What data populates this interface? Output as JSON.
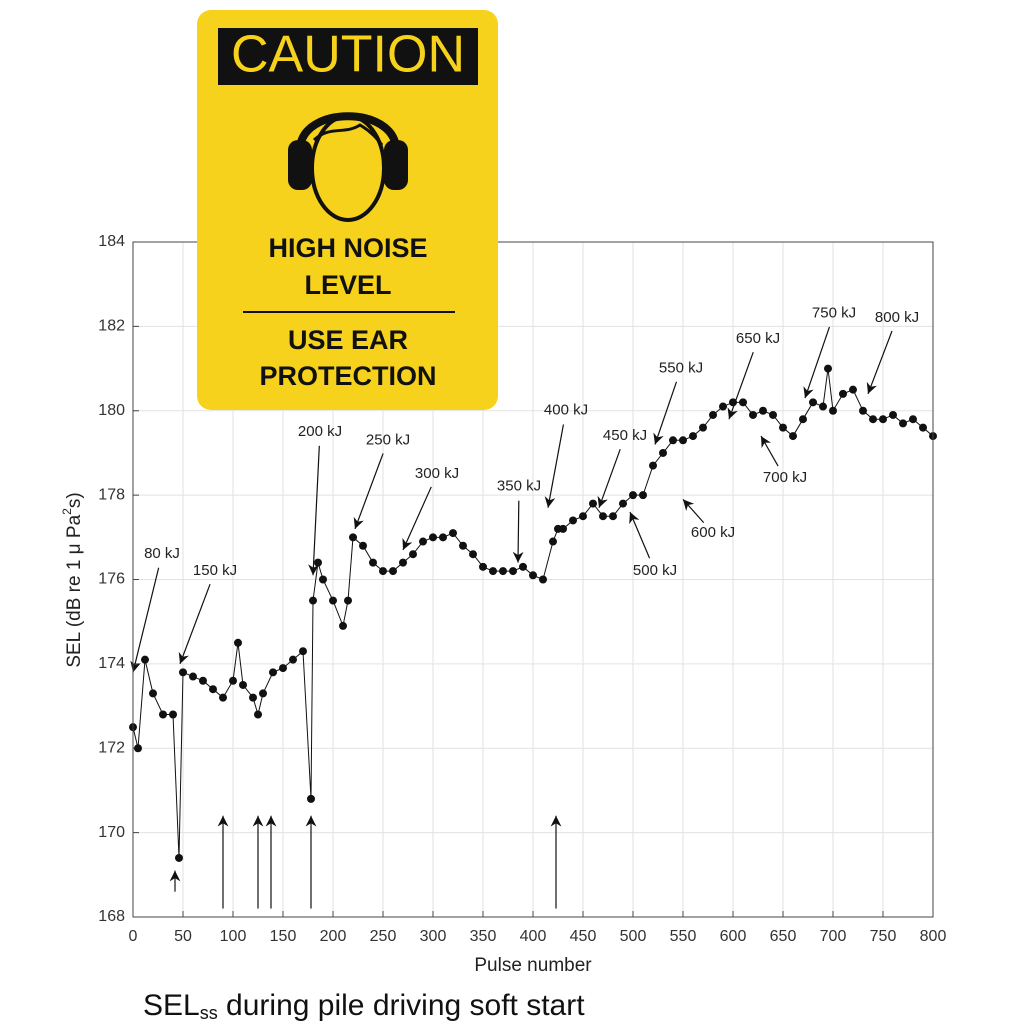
{
  "chart_data": {
    "type": "scatter",
    "ylabel": {
      "main": "SEL (dB re 1 μ Pa",
      "sup": "2",
      "rest": "s)"
    },
    "xlabel": "Pulse number",
    "x": [
      0,
      5,
      12,
      20,
      30,
      40,
      46,
      50,
      60,
      70,
      80,
      90,
      100,
      105,
      110,
      120,
      125,
      130,
      140,
      150,
      160,
      170,
      178,
      180,
      185,
      190,
      200,
      210,
      215,
      220,
      230,
      240,
      250,
      260,
      270,
      280,
      290,
      300,
      310,
      320,
      330,
      340,
      350,
      360,
      370,
      380,
      390,
      400,
      410,
      420,
      425,
      430,
      440,
      450,
      460,
      470,
      480,
      490,
      500,
      510,
      520,
      530,
      540,
      550,
      560,
      570,
      580,
      590,
      600,
      610,
      620,
      630,
      640,
      650,
      660,
      670,
      680,
      690,
      695,
      700,
      710,
      720,
      730,
      740,
      750,
      760,
      770,
      780,
      790,
      800
    ],
    "values": [
      172.5,
      172.0,
      174.1,
      173.3,
      172.8,
      172.8,
      169.4,
      173.8,
      173.7,
      173.6,
      173.4,
      173.2,
      173.6,
      174.5,
      173.5,
      173.2,
      172.8,
      173.3,
      173.8,
      173.9,
      174.1,
      174.3,
      170.8,
      175.5,
      176.4,
      176.0,
      175.5,
      174.9,
      175.5,
      177.0,
      176.8,
      176.4,
      176.2,
      176.2,
      176.4,
      176.6,
      176.9,
      177.0,
      177.0,
      177.1,
      176.8,
      176.6,
      176.3,
      176.2,
      176.2,
      176.2,
      176.3,
      176.1,
      176.0,
      176.9,
      177.2,
      177.2,
      177.4,
      177.5,
      177.8,
      177.5,
      177.5,
      177.8,
      178.0,
      178.0,
      178.7,
      179.0,
      179.3,
      179.3,
      179.4,
      179.6,
      179.9,
      180.1,
      180.2,
      180.2,
      179.9,
      180.0,
      179.9,
      179.6,
      179.4,
      179.8,
      180.2,
      180.1,
      181.0,
      180.0,
      180.4,
      180.5,
      180.0,
      179.8,
      179.8,
      179.9,
      179.7,
      179.8,
      179.6,
      179.4
    ],
    "color": "#111111",
    "xlim": [
      0,
      800
    ],
    "ylim": [
      168,
      184
    ],
    "xticks": [
      0,
      50,
      100,
      150,
      200,
      250,
      300,
      350,
      400,
      450,
      500,
      550,
      600,
      650,
      700,
      750,
      800
    ],
    "yticks": [
      168,
      170,
      172,
      174,
      176,
      178,
      180,
      182,
      184
    ],
    "grid": true,
    "annotations": [
      {
        "text": "80 kJ",
        "x": 0,
        "y": 173.8,
        "xytext": [
          29,
          176.6
        ]
      },
      {
        "text": "150 kJ",
        "x": 47,
        "y": 174.0,
        "xytext": [
          82,
          176.2
        ]
      },
      {
        "text": "200 kJ",
        "x": 180,
        "y": 176.1,
        "xytext": [
          187,
          179.5
        ]
      },
      {
        "text": "250 kJ",
        "x": 222,
        "y": 177.2,
        "xytext": [
          255,
          179.3
        ]
      },
      {
        "text": "300 kJ",
        "x": 270,
        "y": 176.7,
        "xytext": [
          304,
          178.5
        ]
      },
      {
        "text": "350 kJ",
        "x": 385,
        "y": 176.4,
        "xytext": [
          386,
          178.2
        ]
      },
      {
        "text": "400 kJ",
        "x": 415,
        "y": 177.7,
        "xytext": [
          433,
          180.0
        ]
      },
      {
        "text": "450 kJ",
        "x": 466,
        "y": 177.7,
        "xytext": [
          492,
          179.4
        ]
      },
      {
        "text": "500 kJ",
        "x": 497,
        "y": 177.6,
        "xytext": [
          522,
          176.2
        ]
      },
      {
        "text": "550 kJ",
        "x": 522,
        "y": 179.2,
        "xytext": [
          548,
          181.0
        ]
      },
      {
        "text": "600 kJ",
        "x": 550,
        "y": 177.9,
        "xytext": [
          580,
          177.1
        ]
      },
      {
        "text": "650 kJ",
        "x": 596,
        "y": 179.8,
        "xytext": [
          625,
          181.7
        ]
      },
      {
        "text": "700 kJ",
        "x": 628,
        "y": 179.4,
        "xytext": [
          652,
          178.4
        ]
      },
      {
        "text": "750 kJ",
        "x": 672,
        "y": 180.3,
        "xytext": [
          701,
          182.3
        ]
      },
      {
        "text": "800 kJ",
        "x": 735,
        "y": 180.4,
        "xytext": [
          764,
          182.2
        ]
      }
    ],
    "bottom_arrows": [
      {
        "x": 42,
        "y_tail": 168.6,
        "y_tip": 169.1
      },
      {
        "x": 90,
        "y_tail": 168.2,
        "y_tip": 170.4
      },
      {
        "x": 125,
        "y_tail": 168.2,
        "y_tip": 170.4
      },
      {
        "x": 138,
        "y_tail": 168.2,
        "y_tip": 170.4
      },
      {
        "x": 178,
        "y_tail": 168.2,
        "y_tip": 170.4
      },
      {
        "x": 423,
        "y_tail": 168.2,
        "y_tip": 170.4
      }
    ]
  },
  "sign": {
    "header": "CAUTION",
    "line1": "HIGH NOISE",
    "line2": "LEVEL",
    "line3": "USE EAR",
    "line4": "PROTECTION"
  },
  "caption": {
    "main": "SEL",
    "sub": "ss",
    "rest": " during pile driving soft start"
  }
}
